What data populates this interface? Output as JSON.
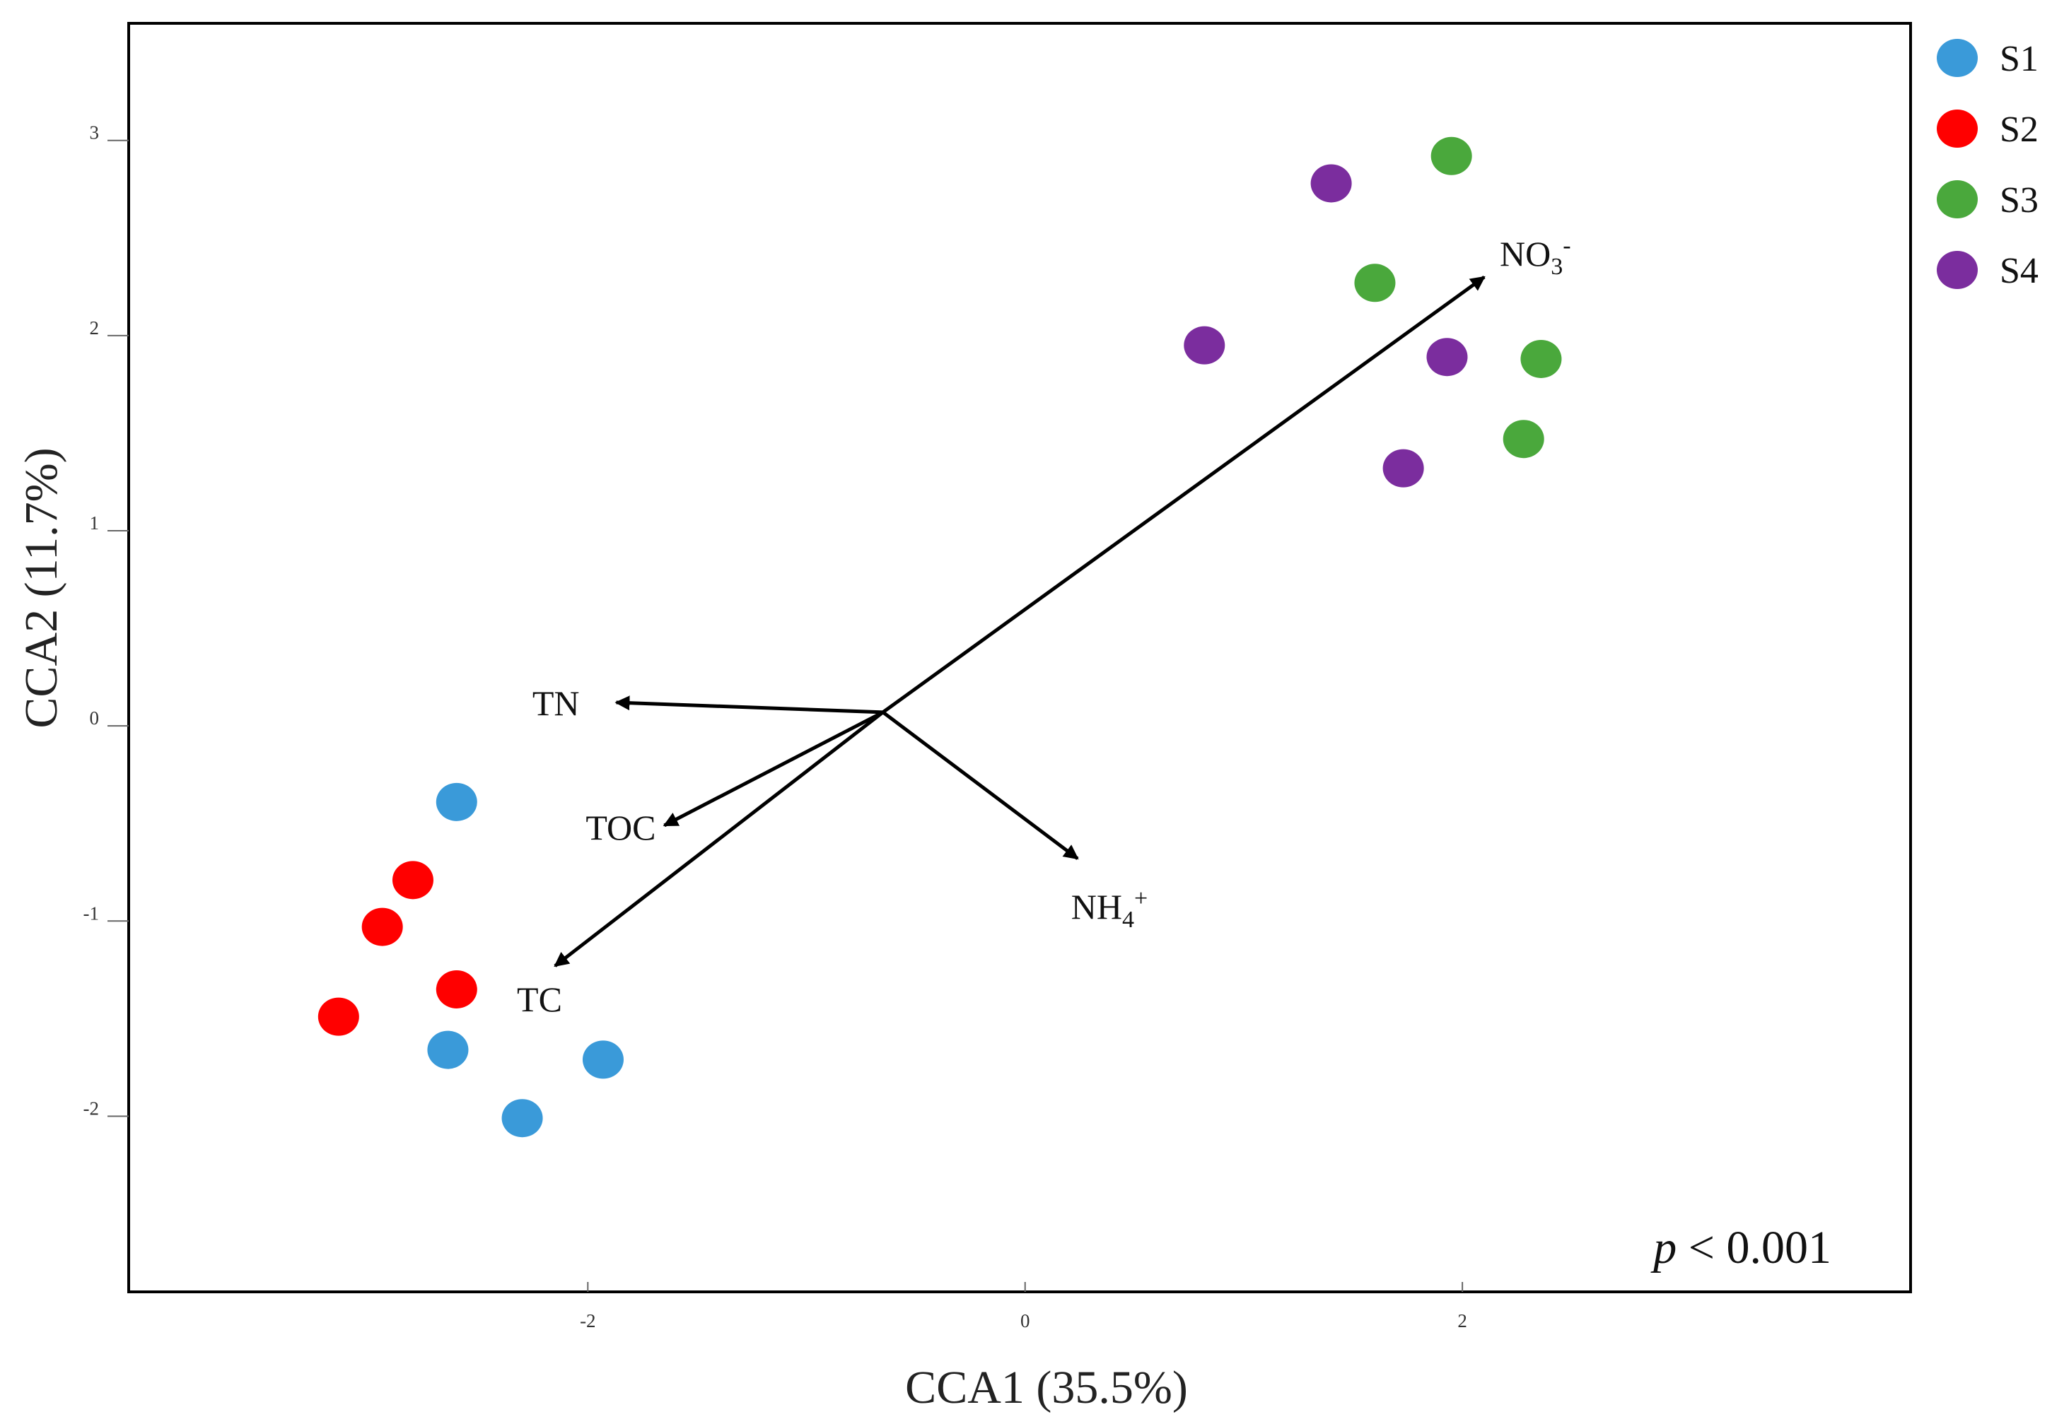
{
  "chart_data": {
    "type": "scatter",
    "title": "",
    "xlabel": "CCA1 (35.5%)",
    "ylabel": "CCA2 (11.7%)",
    "xlim": [
      -4.1,
      4.05
    ],
    "ylim": [
      -2.9,
      3.6
    ],
    "grid": false,
    "legend_position": "right",
    "x_ticks": [
      {
        "value": -2,
        "label": "-2"
      },
      {
        "value": 0,
        "label": "0"
      },
      {
        "value": 2,
        "label": "2"
      }
    ],
    "y_ticks": [
      {
        "value": 3,
        "label": "3"
      },
      {
        "value": 2,
        "label": "2"
      },
      {
        "value": 1,
        "label": "1"
      },
      {
        "value": 0,
        "label": "0"
      },
      {
        "value": -1,
        "label": "-1"
      },
      {
        "value": -2,
        "label": "-2"
      }
    ],
    "series": [
      {
        "name": "S1",
        "color": "#3a9ad9",
        "points": [
          {
            "x": -2.6,
            "y": -0.39
          },
          {
            "x": -2.64,
            "y": -1.66
          },
          {
            "x": -1.93,
            "y": -1.71
          },
          {
            "x": -2.3,
            "y": -2.01
          }
        ]
      },
      {
        "name": "S2",
        "color": "#ff0000",
        "points": [
          {
            "x": -2.8,
            "y": -0.79
          },
          {
            "x": -2.94,
            "y": -1.03
          },
          {
            "x": -2.6,
            "y": -1.35
          },
          {
            "x": -3.14,
            "y": -1.49
          }
        ]
      },
      {
        "name": "S3",
        "color": "#4aa83c",
        "points": [
          {
            "x": 1.95,
            "y": 2.92
          },
          {
            "x": 1.6,
            "y": 2.27
          },
          {
            "x": 2.36,
            "y": 1.88
          },
          {
            "x": 2.28,
            "y": 1.47
          }
        ]
      },
      {
        "name": "S4",
        "color": "#7b2d9e",
        "points": [
          {
            "x": 1.4,
            "y": 2.78
          },
          {
            "x": 0.82,
            "y": 1.95
          },
          {
            "x": 1.93,
            "y": 1.89
          },
          {
            "x": 1.73,
            "y": 1.32
          }
        ]
      }
    ],
    "vectors": [
      {
        "name": "NO3",
        "label_main": "NO",
        "label_sub": "3",
        "label_sup": "-",
        "x_start": -0.65,
        "y_start": 0.07,
        "x_end": 2.1,
        "y_end": 2.3
      },
      {
        "name": "TN",
        "label_main": "TN",
        "label_sub": "",
        "label_sup": "",
        "x_start": -0.65,
        "y_start": 0.07,
        "x_end": -1.87,
        "y_end": 0.12
      },
      {
        "name": "TOC",
        "label_main": "TOC",
        "label_sub": "",
        "label_sup": "",
        "x_start": -0.65,
        "y_start": 0.07,
        "x_end": -1.65,
        "y_end": -0.51
      },
      {
        "name": "TC",
        "label_main": "TC",
        "label_sub": "",
        "label_sup": "",
        "x_start": -0.65,
        "y_start": 0.07,
        "x_end": -2.15,
        "y_end": -1.23
      },
      {
        "name": "NH4",
        "label_main": "NH",
        "label_sub": "4",
        "label_sup": "+",
        "x_start": -0.65,
        "y_start": 0.07,
        "x_end": 0.24,
        "y_end": -0.68
      }
    ],
    "annotation": {
      "p_symbol": "p",
      "p_rest": " < 0.001"
    }
  }
}
